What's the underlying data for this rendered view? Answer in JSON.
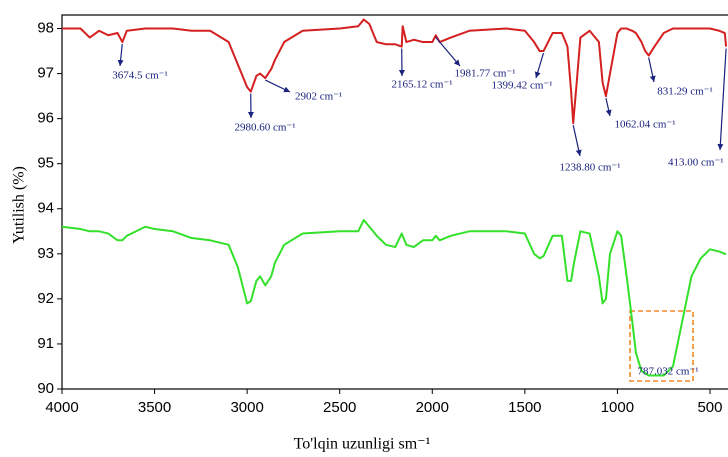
{
  "chart_data": {
    "type": "line",
    "xlabel": "To'lqin uzunligi sm⁻¹",
    "ylabel": "Yutilish (%)",
    "x": [
      4000,
      3900,
      3850,
      3800,
      3750,
      3700,
      3674,
      3650,
      3550,
      3500,
      3400,
      3300,
      3200,
      3100,
      3050,
      3000,
      2980,
      2950,
      2930,
      2902,
      2870,
      2850,
      2800,
      2700,
      2500,
      2400,
      2370,
      2340,
      2300,
      2250,
      2200,
      2165,
      2160,
      2140,
      2100,
      2050,
      2000,
      1981,
      1960,
      1900,
      1800,
      1600,
      1500,
      1450,
      1420,
      1399,
      1350,
      1300,
      1270,
      1250,
      1238.8,
      1220,
      1200,
      1150,
      1100,
      1080,
      1062,
      1040,
      1000,
      980,
      950,
      920,
      900,
      870,
      850,
      831,
      800,
      750,
      700,
      650,
      600,
      550,
      500,
      450,
      420,
      413
    ],
    "series": [
      {
        "color": "#d42020",
        "values": [
          98.0,
          98.0,
          97.8,
          97.95,
          97.85,
          97.9,
          97.7,
          97.95,
          98.0,
          98.0,
          98.0,
          97.95,
          97.95,
          97.7,
          97.2,
          96.7,
          96.6,
          96.95,
          97.0,
          96.9,
          97.1,
          97.3,
          97.7,
          97.95,
          98.0,
          98.05,
          98.2,
          98.1,
          97.7,
          97.65,
          97.65,
          97.6,
          98.05,
          97.7,
          97.75,
          97.7,
          97.7,
          97.85,
          97.7,
          97.8,
          97.95,
          98.0,
          97.95,
          97.7,
          97.5,
          97.5,
          97.9,
          97.9,
          97.6,
          96.6,
          95.9,
          96.8,
          97.8,
          97.95,
          97.7,
          96.8,
          96.5,
          97.0,
          97.9,
          98.0,
          98.0,
          97.95,
          97.9,
          97.7,
          97.5,
          97.4,
          97.6,
          97.9,
          98.0,
          98.0,
          98.0,
          98.0,
          98.0,
          97.95,
          97.9,
          97.6
        ]
      },
      {
        "color": "#33e02a",
        "values": [
          93.6,
          93.55,
          93.5,
          93.5,
          93.45,
          93.3,
          93.3,
          93.4,
          93.6,
          93.55,
          93.5,
          93.35,
          93.3,
          93.2,
          92.7,
          91.9,
          91.95,
          92.4,
          92.5,
          92.3,
          92.5,
          92.8,
          93.2,
          93.45,
          93.5,
          93.5,
          93.75,
          93.6,
          93.4,
          93.2,
          93.15,
          93.45,
          93.4,
          93.2,
          93.15,
          93.3,
          93.3,
          93.4,
          93.3,
          93.4,
          93.5,
          93.5,
          93.45,
          93.0,
          92.9,
          92.95,
          93.4,
          93.4,
          92.4,
          92.4,
          92.7,
          93.1,
          93.5,
          93.45,
          92.5,
          91.9,
          92.0,
          93.0,
          93.5,
          93.4,
          92.5,
          91.5,
          90.8,
          90.4,
          90.35,
          90.3,
          90.3,
          90.3,
          90.5,
          91.5,
          92.5,
          92.9,
          93.1,
          93.05,
          93.0,
          93.0
        ]
      }
    ],
    "xlim": [
      4000,
      400
    ],
    "ylim": [
      90,
      98.3
    ],
    "xticks": [
      4000,
      3500,
      3000,
      2500,
      2000,
      1500,
      1000,
      500
    ],
    "yticks": [
      90,
      91,
      92,
      93,
      94,
      95,
      96,
      97,
      98
    ],
    "annotations": [
      {
        "text": "3674.5 cm⁻¹",
        "x": 3674.5,
        "y": 97.7
      },
      {
        "text": "2980.60 cm⁻¹",
        "x": 2980.6,
        "y": 96.6
      },
      {
        "text": "2902 cm⁻¹",
        "x": 2902,
        "y": 96.9
      },
      {
        "text": "2165.12 cm⁻¹",
        "x": 2165.12,
        "y": 97.6
      },
      {
        "text": "1981.77 cm⁻¹",
        "x": 1981.77,
        "y": 97.85
      },
      {
        "text": "1399.42 cm⁻¹",
        "x": 1399.42,
        "y": 97.5
      },
      {
        "text": "1238.80 cm⁻¹",
        "x": 1238.8,
        "y": 95.9
      },
      {
        "text": "1062.04 cm⁻¹",
        "x": 1062.04,
        "y": 96.5
      },
      {
        "text": "831.29 cm⁻¹",
        "x": 831.29,
        "y": 97.4
      },
      {
        "text": "413.00 cm⁻¹",
        "x": 413,
        "y": 97.6
      },
      {
        "text": "787.032 cm⁻¹",
        "x": 787.032,
        "y": 90.3
      }
    ]
  }
}
